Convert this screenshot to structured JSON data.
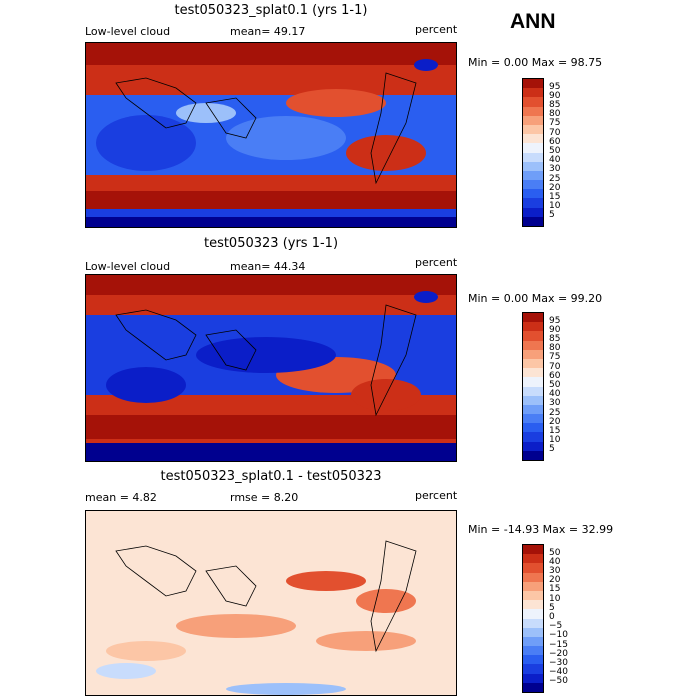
{
  "header": {
    "season": "ANN"
  },
  "panels": [
    {
      "title": "test050323_splat0.1 (yrs 1-1)",
      "left_label": "Low-level cloud",
      "center_label": "mean=  49.17",
      "right_label": "percent",
      "minmax": "Min =    0.00 Max =  98.75",
      "colorbar_labels": [
        "95",
        "90",
        "85",
        "80",
        "75",
        "70",
        "60",
        "50",
        "40",
        "30",
        "25",
        "20",
        "15",
        "10",
        "5"
      ],
      "colorbar_colors": [
        "#00008f",
        "#0b1ec8",
        "#1a3ee0",
        "#2a5ef0",
        "#4a7ef5",
        "#6f9ef8",
        "#9cc0fa",
        "#c8dcfc",
        "#eef3fc",
        "#fce4d4",
        "#fcc6a6",
        "#f7a07a",
        "#ef7650",
        "#e2502f",
        "#cc2f17",
        "#a51208"
      ]
    },
    {
      "title": "test050323 (yrs 1-1)",
      "left_label": "Low-level cloud",
      "center_label": "mean=  44.34",
      "right_label": "percent",
      "minmax": "Min =    0.00 Max =  99.20",
      "colorbar_labels": [
        "95",
        "90",
        "85",
        "80",
        "75",
        "70",
        "60",
        "50",
        "40",
        "30",
        "25",
        "20",
        "15",
        "10",
        "5"
      ],
      "colorbar_colors": [
        "#00008f",
        "#0b1ec8",
        "#1a3ee0",
        "#2a5ef0",
        "#4a7ef5",
        "#6f9ef8",
        "#9cc0fa",
        "#c8dcfc",
        "#eef3fc",
        "#fce4d4",
        "#fcc6a6",
        "#f7a07a",
        "#ef7650",
        "#e2502f",
        "#cc2f17",
        "#a51208"
      ]
    },
    {
      "title": "test050323_splat0.1 - test050323",
      "left_label": "mean =    4.82",
      "center_label": "rmse =    8.20",
      "right_label": "percent",
      "minmax": "Min = -14.93 Max =  32.99",
      "colorbar_labels": [
        "50",
        "40",
        "30",
        "20",
        "15",
        "10",
        "5",
        "0",
        "−5",
        "−10",
        "−15",
        "−20",
        "−30",
        "−40",
        "−50"
      ],
      "colorbar_colors": [
        "#00008f",
        "#0b1ec8",
        "#1a3ee0",
        "#2a5ef0",
        "#4a7ef5",
        "#6f9ef8",
        "#9cc0fa",
        "#c8dcfc",
        "#eef3fc",
        "#fce4d4",
        "#fcc6a6",
        "#f7a07a",
        "#ef7650",
        "#e2502f",
        "#cc2f17",
        "#a51208"
      ]
    }
  ],
  "chart_data": [
    {
      "type": "heatmap",
      "title": "test050323_splat0.1 (yrs 1-1)",
      "variable": "Low-level cloud",
      "units": "percent",
      "mean": 49.17,
      "min": 0.0,
      "max": 98.75,
      "levels": [
        5,
        10,
        15,
        20,
        25,
        30,
        40,
        50,
        60,
        70,
        75,
        80,
        85,
        90,
        95
      ]
    },
    {
      "type": "heatmap",
      "title": "test050323 (yrs 1-1)",
      "variable": "Low-level cloud",
      "units": "percent",
      "mean": 44.34,
      "min": 0.0,
      "max": 99.2,
      "levels": [
        5,
        10,
        15,
        20,
        25,
        30,
        40,
        50,
        60,
        70,
        75,
        80,
        85,
        90,
        95
      ]
    },
    {
      "type": "heatmap",
      "title": "test050323_splat0.1 - test050323",
      "units": "percent",
      "mean": 4.82,
      "rmse": 8.2,
      "min": -14.93,
      "max": 32.99,
      "levels": [
        -50,
        -40,
        -30,
        -20,
        -15,
        -10,
        -5,
        0,
        5,
        10,
        15,
        20,
        30,
        40,
        50
      ]
    }
  ]
}
